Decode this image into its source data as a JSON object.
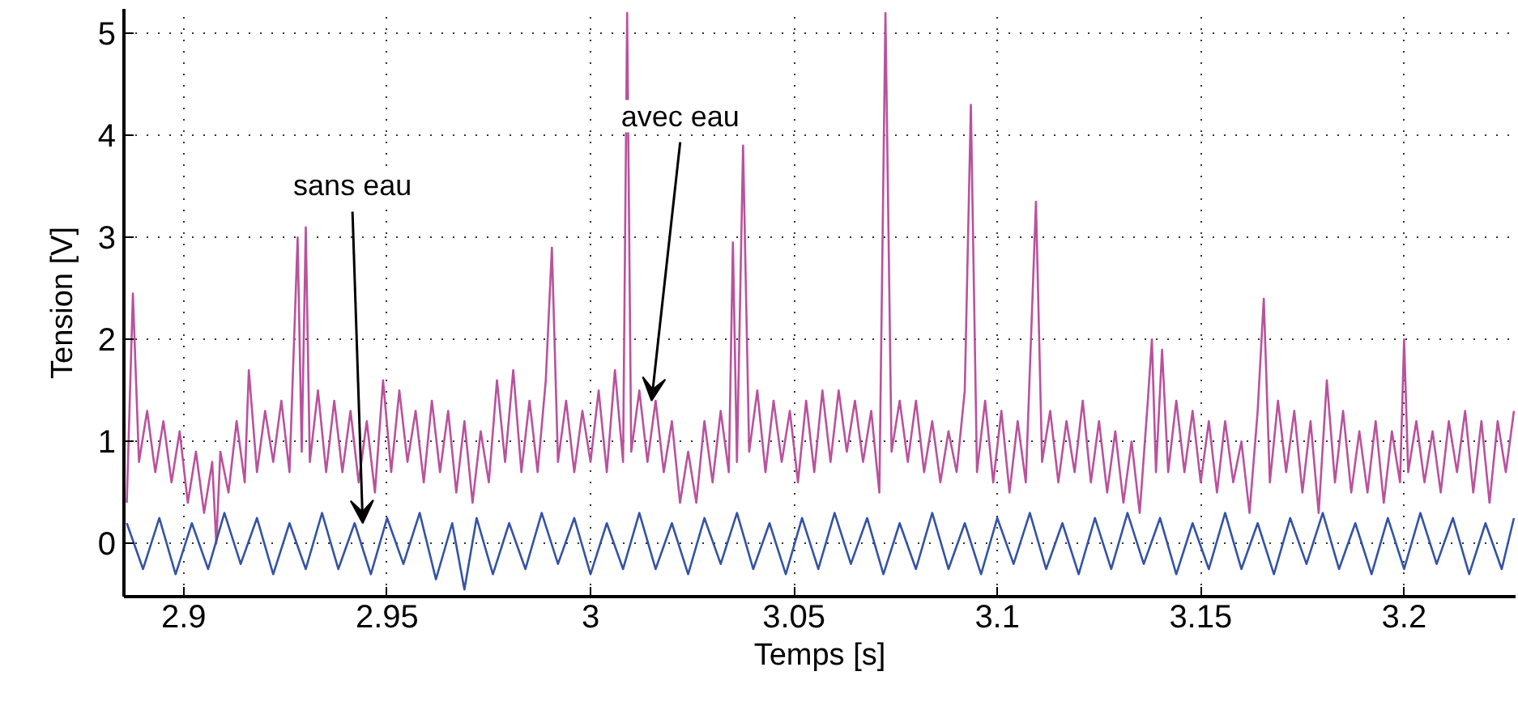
{
  "chart_data": {
    "type": "line",
    "xlabel": "Temps [s]",
    "ylabel": "Tension [V]",
    "xlim": [
      2.8853,
      3.2274
    ],
    "ylim": [
      -0.52,
      5.24
    ],
    "xticks": [
      2.9,
      2.95,
      3,
      3.05,
      3.1,
      3.15,
      3.2
    ],
    "yticks": [
      0,
      1,
      2,
      3,
      4,
      5
    ],
    "grid": true,
    "line_style": "solid",
    "marker": "none",
    "annotations": [
      {
        "text": "sans eau",
        "x": 2.944,
        "y": 0.2
      },
      {
        "text": "avec eau",
        "x": 3.015,
        "y": 1.4
      }
    ],
    "series": [
      {
        "color": "#b9529c",
        "x": [
          2.886,
          2.8875,
          2.889,
          2.891,
          2.893,
          2.895,
          2.897,
          2.899,
          2.901,
          2.903,
          2.905,
          2.907,
          2.908,
          2.909,
          2.911,
          2.913,
          2.915,
          2.916,
          2.918,
          2.92,
          2.922,
          2.924,
          2.926,
          2.928,
          2.929,
          2.93,
          2.931,
          2.933,
          2.935,
          2.937,
          2.939,
          2.941,
          2.943,
          2.945,
          2.947,
          2.949,
          2.951,
          2.953,
          2.955,
          2.957,
          2.959,
          2.961,
          2.963,
          2.965,
          2.967,
          2.969,
          2.971,
          2.973,
          2.975,
          2.977,
          2.979,
          2.981,
          2.983,
          2.985,
          2.987,
          2.989,
          2.9905,
          2.992,
          2.994,
          2.996,
          2.998,
          3.0,
          3.002,
          3.004,
          3.006,
          3.008,
          3.009,
          3.01,
          3.012,
          3.014,
          3.016,
          3.018,
          3.02,
          3.022,
          3.024,
          3.026,
          3.028,
          3.03,
          3.032,
          3.034,
          3.035,
          3.036,
          3.0375,
          3.039,
          3.041,
          3.043,
          3.045,
          3.047,
          3.049,
          3.051,
          3.053,
          3.055,
          3.057,
          3.059,
          3.061,
          3.063,
          3.065,
          3.067,
          3.069,
          3.071,
          3.0725,
          3.074,
          3.076,
          3.078,
          3.08,
          3.082,
          3.084,
          3.086,
          3.088,
          3.09,
          3.092,
          3.0935,
          3.095,
          3.097,
          3.099,
          3.101,
          3.103,
          3.105,
          3.107,
          3.1095,
          3.111,
          3.113,
          3.115,
          3.117,
          3.119,
          3.121,
          3.123,
          3.125,
          3.127,
          3.129,
          3.131,
          3.133,
          3.135,
          3.137,
          3.138,
          3.139,
          3.1405,
          3.142,
          3.144,
          3.146,
          3.148,
          3.15,
          3.152,
          3.154,
          3.156,
          3.158,
          3.16,
          3.162,
          3.164,
          3.1655,
          3.167,
          3.169,
          3.171,
          3.173,
          3.175,
          3.177,
          3.179,
          3.181,
          3.183,
          3.185,
          3.187,
          3.189,
          3.191,
          3.193,
          3.195,
          3.197,
          3.199,
          3.2,
          3.201,
          3.203,
          3.205,
          3.207,
          3.209,
          3.211,
          3.213,
          3.215,
          3.217,
          3.219,
          3.221,
          3.223,
          3.225,
          3.227
        ],
        "values": [
          0.4,
          2.45,
          0.8,
          1.3,
          0.7,
          1.2,
          0.6,
          1.1,
          0.4,
          0.9,
          0.3,
          0.8,
          0.0,
          0.9,
          0.5,
          1.2,
          0.6,
          1.7,
          0.7,
          1.3,
          0.8,
          1.4,
          0.7,
          3.0,
          0.9,
          3.1,
          0.8,
          1.5,
          0.7,
          1.4,
          0.7,
          1.3,
          0.6,
          1.2,
          0.5,
          1.6,
          0.7,
          1.5,
          0.8,
          1.3,
          0.6,
          1.4,
          0.7,
          1.3,
          0.5,
          1.2,
          0.4,
          1.1,
          0.6,
          1.6,
          0.8,
          1.7,
          0.7,
          1.4,
          0.7,
          1.6,
          2.9,
          0.8,
          1.4,
          0.7,
          1.3,
          0.8,
          1.5,
          0.7,
          1.7,
          0.8,
          5.2,
          0.9,
          1.5,
          0.8,
          1.4,
          0.7,
          1.2,
          0.4,
          0.9,
          0.4,
          1.2,
          0.6,
          1.3,
          0.7,
          2.95,
          0.8,
          3.9,
          0.9,
          1.5,
          0.7,
          1.4,
          0.8,
          1.3,
          0.6,
          1.4,
          0.7,
          1.5,
          0.8,
          1.5,
          0.9,
          1.4,
          0.8,
          1.3,
          0.5,
          5.2,
          0.9,
          1.4,
          0.8,
          1.4,
          0.7,
          1.2,
          0.6,
          1.1,
          0.7,
          1.5,
          4.3,
          0.7,
          1.4,
          0.6,
          1.3,
          0.5,
          1.2,
          0.6,
          3.35,
          0.8,
          1.3,
          0.6,
          1.2,
          0.7,
          1.4,
          0.6,
          1.2,
          0.5,
          1.1,
          0.4,
          1.0,
          0.3,
          1.4,
          2.0,
          0.7,
          1.9,
          0.7,
          1.4,
          0.7,
          1.3,
          0.6,
          1.2,
          0.5,
          1.2,
          0.6,
          1.0,
          0.3,
          1.3,
          2.4,
          0.6,
          1.4,
          0.7,
          1.3,
          0.5,
          1.2,
          0.3,
          1.6,
          0.6,
          1.3,
          0.5,
          1.1,
          0.5,
          1.2,
          0.4,
          1.1,
          0.6,
          2.0,
          0.7,
          1.2,
          0.6,
          1.1,
          0.5,
          1.2,
          0.7,
          1.3,
          0.5,
          1.2,
          0.4,
          1.2,
          0.7,
          1.3
        ]
      },
      {
        "color": "#3453a4",
        "x": [
          2.886,
          2.89,
          2.894,
          2.898,
          2.902,
          2.906,
          2.91,
          2.914,
          2.918,
          2.922,
          2.926,
          2.93,
          2.934,
          2.938,
          2.942,
          2.946,
          2.95,
          2.954,
          2.958,
          2.962,
          2.966,
          2.969,
          2.972,
          2.976,
          2.98,
          2.984,
          2.988,
          2.992,
          2.996,
          3.0,
          3.004,
          3.008,
          3.012,
          3.016,
          3.02,
          3.024,
          3.028,
          3.032,
          3.036,
          3.04,
          3.044,
          3.048,
          3.052,
          3.056,
          3.06,
          3.064,
          3.068,
          3.072,
          3.076,
          3.08,
          3.084,
          3.088,
          3.092,
          3.096,
          3.1,
          3.104,
          3.108,
          3.112,
          3.116,
          3.12,
          3.124,
          3.128,
          3.132,
          3.136,
          3.14,
          3.144,
          3.148,
          3.152,
          3.156,
          3.16,
          3.164,
          3.168,
          3.172,
          3.176,
          3.18,
          3.184,
          3.188,
          3.192,
          3.196,
          3.2,
          3.204,
          3.208,
          3.212,
          3.216,
          3.22,
          3.224,
          3.227
        ],
        "values": [
          0.2,
          -0.25,
          0.25,
          -0.3,
          0.2,
          -0.25,
          0.3,
          -0.2,
          0.25,
          -0.3,
          0.2,
          -0.25,
          0.3,
          -0.25,
          0.2,
          -0.3,
          0.25,
          -0.2,
          0.3,
          -0.35,
          0.2,
          -0.45,
          0.25,
          -0.3,
          0.2,
          -0.25,
          0.3,
          -0.2,
          0.25,
          -0.3,
          0.2,
          -0.25,
          0.3,
          -0.25,
          0.2,
          -0.3,
          0.25,
          -0.2,
          0.3,
          -0.25,
          0.2,
          -0.3,
          0.25,
          -0.25,
          0.3,
          -0.2,
          0.25,
          -0.3,
          0.2,
          -0.25,
          0.3,
          -0.25,
          0.2,
          -0.3,
          0.25,
          -0.2,
          0.3,
          -0.25,
          0.2,
          -0.3,
          0.25,
          -0.25,
          0.3,
          -0.2,
          0.25,
          -0.3,
          0.2,
          -0.25,
          0.3,
          -0.25,
          0.2,
          -0.3,
          0.25,
          -0.2,
          0.3,
          -0.25,
          0.2,
          -0.3,
          0.25,
          -0.25,
          0.3,
          -0.2,
          0.25,
          -0.3,
          0.2,
          -0.25,
          0.25
        ]
      }
    ]
  }
}
